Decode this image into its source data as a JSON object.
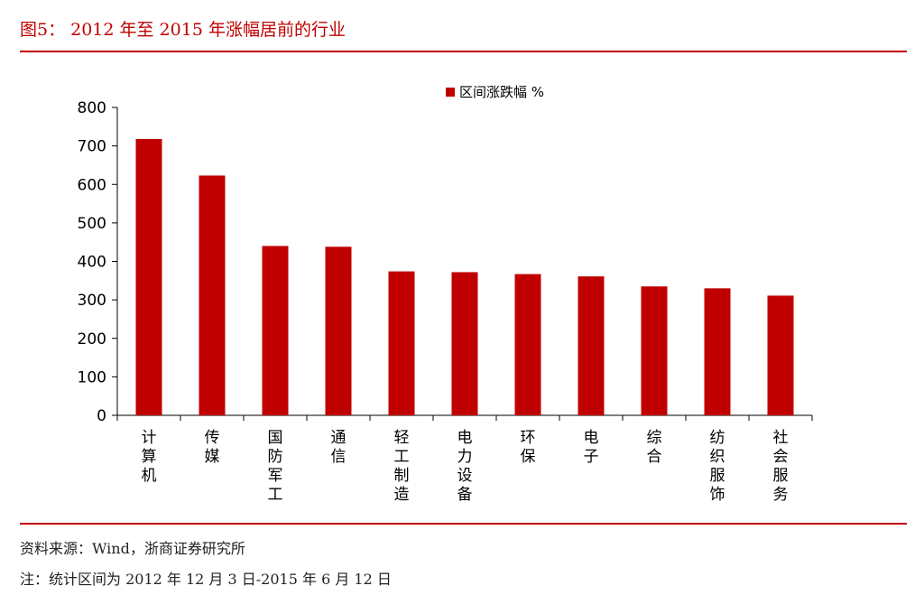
{
  "header": {
    "title": "图5： 2012 年至 2015 年涨幅居前的行业"
  },
  "footer": {
    "source": "资料来源：Wind，浙商证券研究所",
    "remark": "注：统计区间为 2012 年 12 月 3 日-2015 年 6 月 12 日"
  },
  "colors": {
    "accent": "#c00000",
    "bar": "#c00000"
  },
  "chart_data": {
    "type": "bar",
    "categories": [
      "计算机",
      "传媒",
      "国防军工",
      "通信",
      "轻工制造",
      "电力设备",
      "环保",
      "电子",
      "综合",
      "纺织服饰",
      "社会服务"
    ],
    "series": [
      {
        "name": "区间涨跌幅 %",
        "values": [
          718,
          623,
          440,
          438,
          374,
          372,
          367,
          361,
          335,
          330,
          311
        ]
      }
    ],
    "ylim": [
      0,
      800
    ],
    "yticks": [
      0,
      100,
      200,
      300,
      400,
      500,
      600,
      700,
      800
    ],
    "grid": false,
    "legend": "top-center",
    "xlabel": "",
    "ylabel": ""
  }
}
